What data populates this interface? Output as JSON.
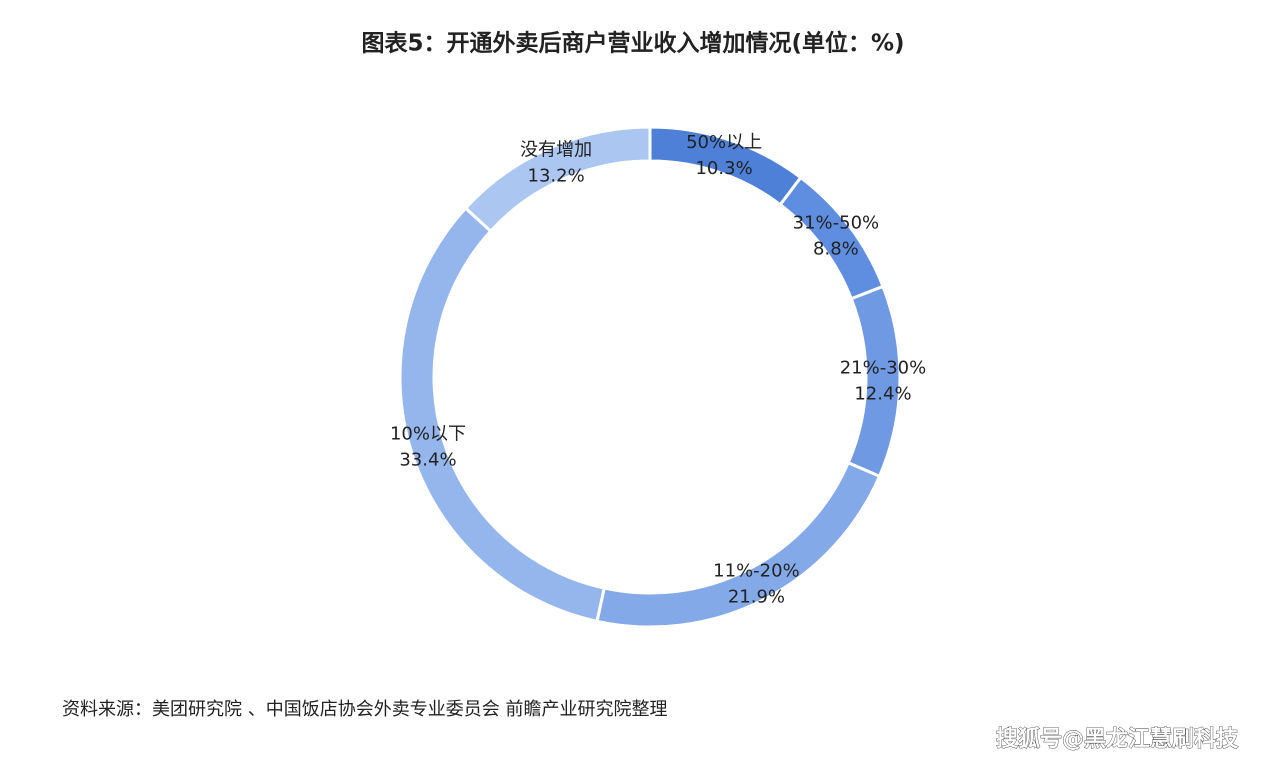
{
  "chart_data": {
    "type": "donut",
    "title": "图表5：开通外卖后商户营业收入增加情况(单位：%)",
    "categories": [
      "50%以上",
      "31%-50%",
      "21%-30%",
      "11%-20%",
      "10%以下",
      "没有增加"
    ],
    "values": [
      10.3,
      8.8,
      12.4,
      21.9,
      33.4,
      13.2
    ],
    "value_labels": [
      "10.3%",
      "8.8%",
      "12.4%",
      "21.9%",
      "33.4%",
      "13.2%"
    ],
    "colors": [
      "#4f80d8",
      "#5f8ddf",
      "#6f99e3",
      "#84a9e8",
      "#95b6ec",
      "#abc6f1"
    ],
    "source": "资料来源：美团研究院 、中国饭店协会外卖专业委员会 前瞻产业研究院整理"
  },
  "watermark": "搜狐号@黑龙江慧刷科技"
}
